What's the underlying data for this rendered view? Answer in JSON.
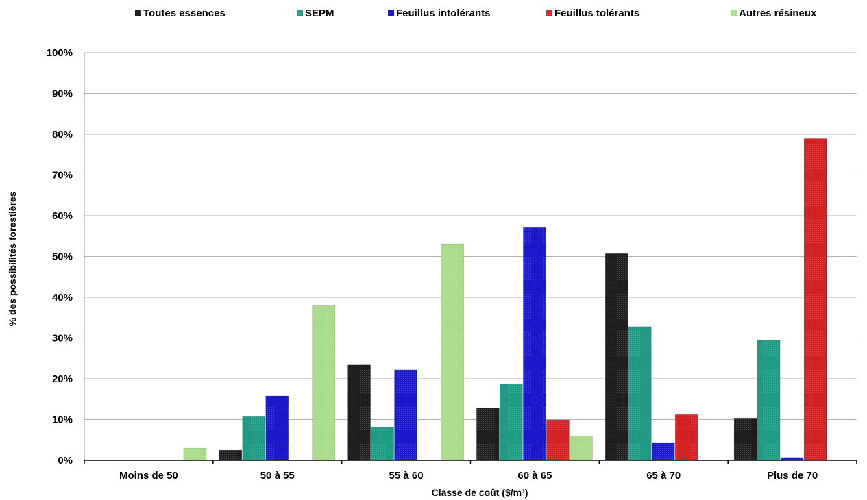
{
  "chart_data": {
    "type": "bar",
    "title": "",
    "xlabel": "Classe de coût ($/m³)",
    "ylabel": "% des possibilités forestières",
    "ylim": [
      0,
      100
    ],
    "yticks": [
      "0%",
      "10%",
      "20%",
      "30%",
      "40%",
      "50%",
      "60%",
      "70%",
      "80%",
      "90%",
      "100%"
    ],
    "grid": true,
    "legend_position": "top",
    "categories": [
      "Moins de 50",
      "50 à 55",
      "55 à 60",
      "60 à 65",
      "65 à 70",
      "Plus de 70"
    ],
    "series": [
      {
        "name": "Toutes essences",
        "color": "#1f1f1f",
        "values": [
          0,
          2.5,
          23.4,
          12.9,
          50.7,
          10.2
        ]
      },
      {
        "name": "SEPM",
        "color": "#1f9a84",
        "values": [
          0,
          10.7,
          8.2,
          18.8,
          32.8,
          29.4
        ]
      },
      {
        "name": "Feuillus intolérants",
        "color": "#1a1acc",
        "values": [
          0,
          15.8,
          22.2,
          57.1,
          4.2,
          0.7
        ]
      },
      {
        "name": "Feuillus tolérants",
        "color": "#d42222",
        "values": [
          0,
          0,
          0,
          9.9,
          11.2,
          78.9
        ]
      },
      {
        "name": "Autres résineux",
        "color": "#a8dc88",
        "values": [
          3.0,
          37.9,
          53.1,
          6.0,
          0,
          0
        ]
      }
    ]
  }
}
